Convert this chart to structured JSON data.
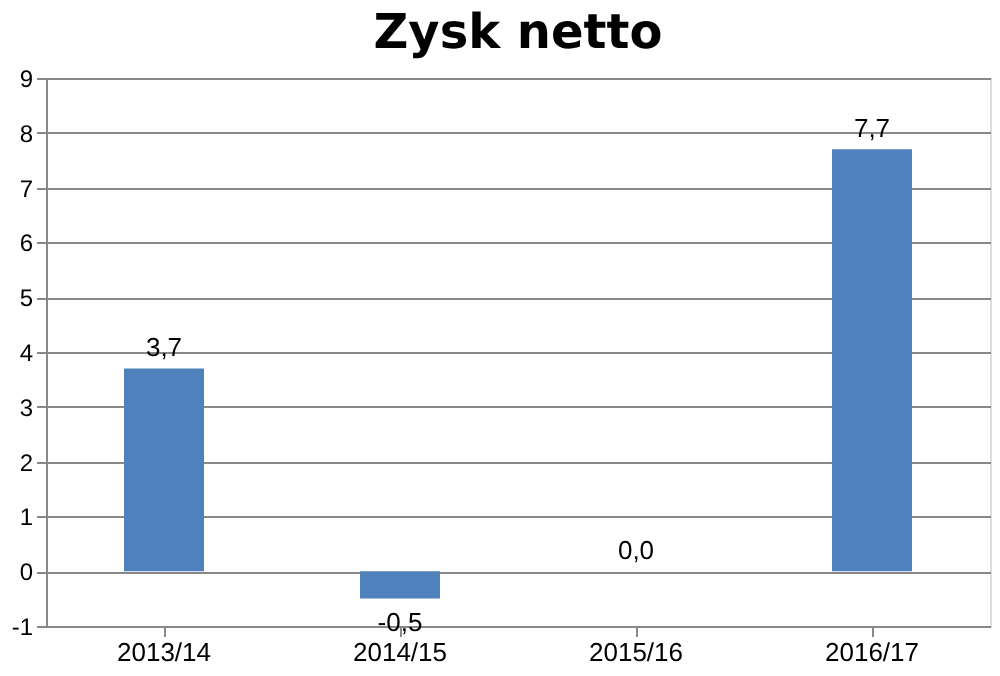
{
  "chart_data": {
    "type": "bar",
    "title": "Zysk netto",
    "categories": [
      "2013/14",
      "2014/15",
      "2015/16",
      "2016/17"
    ],
    "values": [
      3.7,
      -0.5,
      0.0,
      7.7
    ],
    "value_labels": [
      "3,7",
      "-0,5",
      "0,0",
      "7,7"
    ],
    "color": "#4f81bd",
    "ylim": [
      -1,
      9
    ],
    "yticks": [
      -1,
      0,
      1,
      2,
      3,
      4,
      5,
      6,
      7,
      8,
      9
    ],
    "grid": "y"
  }
}
